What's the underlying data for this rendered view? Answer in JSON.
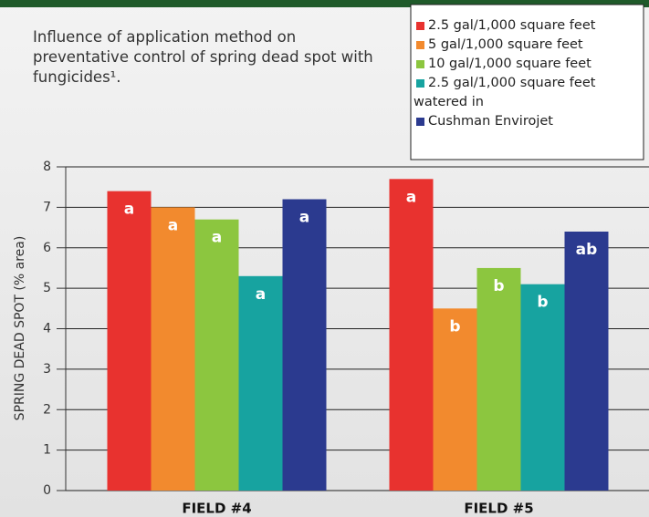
{
  "chart_data": {
    "type": "bar",
    "title": "Influence of application method on preventative control of spring dead spot with fungicides¹.",
    "ylabel": "SPRING DEAD SPOT (% area)",
    "categories": [
      "FIELD #4",
      "FIELD #5"
    ],
    "series": [
      {
        "name": "2.5 gal/1,000 square feet",
        "color": "#e8322f",
        "values": [
          7.4,
          7.7
        ],
        "letters": [
          "a",
          "a"
        ]
      },
      {
        "name": "5 gal/1,000 square feet",
        "color": "#f28a2e",
        "values": [
          7.0,
          4.5
        ],
        "letters": [
          "a",
          "b"
        ]
      },
      {
        "name": "10 gal/1,000 square feet",
        "color": "#8cc63f",
        "values": [
          6.7,
          5.5
        ],
        "letters": [
          "a",
          "b"
        ]
      },
      {
        "name": "2.5 gal/1,000 square feet watered in",
        "color": "#17a3a0",
        "values": [
          5.3,
          5.1
        ],
        "letters": [
          "a",
          "b"
        ]
      },
      {
        "name": "Cushman Envirojet",
        "color": "#2b3a8f",
        "values": [
          7.2,
          6.4
        ],
        "letters": [
          "a",
          "ab"
        ]
      }
    ],
    "ylim": [
      0,
      8
    ],
    "yticks": [
      0,
      1,
      2,
      3,
      4,
      5,
      6,
      7,
      8
    ],
    "grid": true
  }
}
